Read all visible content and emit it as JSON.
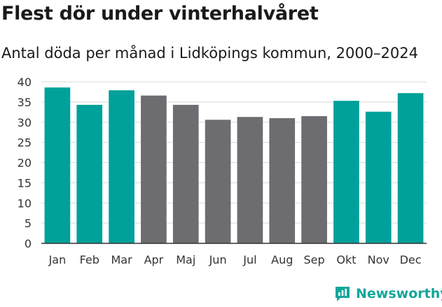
{
  "header": {
    "title": "Flest dör under vinterhalvåret",
    "subtitle": "Antal döda per månad i Lidköpings kommun, 2000–2024"
  },
  "brand": {
    "name": "Newsworthy"
  },
  "colors": {
    "winter": "#00a19a",
    "summer": "#6d6c70",
    "grid": "#d9d9d9",
    "axis": "#333333",
    "brand": "#14a69b"
  },
  "chart_data": {
    "type": "bar",
    "title": "Flest dör under vinterhalvåret",
    "subtitle": "Antal döda per månad i Lidköpings kommun, 2000–2024",
    "categories": [
      "Jan",
      "Feb",
      "Mar",
      "Apr",
      "Maj",
      "Jun",
      "Jul",
      "Aug",
      "Sep",
      "Okt",
      "Nov",
      "Dec"
    ],
    "values": [
      38.6,
      34.3,
      37.9,
      36.6,
      34.3,
      30.6,
      31.3,
      31.0,
      31.5,
      35.3,
      32.6,
      37.2
    ],
    "highlight": [
      true,
      true,
      true,
      false,
      false,
      false,
      false,
      false,
      false,
      true,
      true,
      true
    ],
    "ylim": [
      0,
      40
    ],
    "yticks": [
      0,
      5,
      10,
      15,
      20,
      25,
      30,
      35,
      40
    ],
    "xlabel": "",
    "ylabel": "",
    "grid": true
  }
}
